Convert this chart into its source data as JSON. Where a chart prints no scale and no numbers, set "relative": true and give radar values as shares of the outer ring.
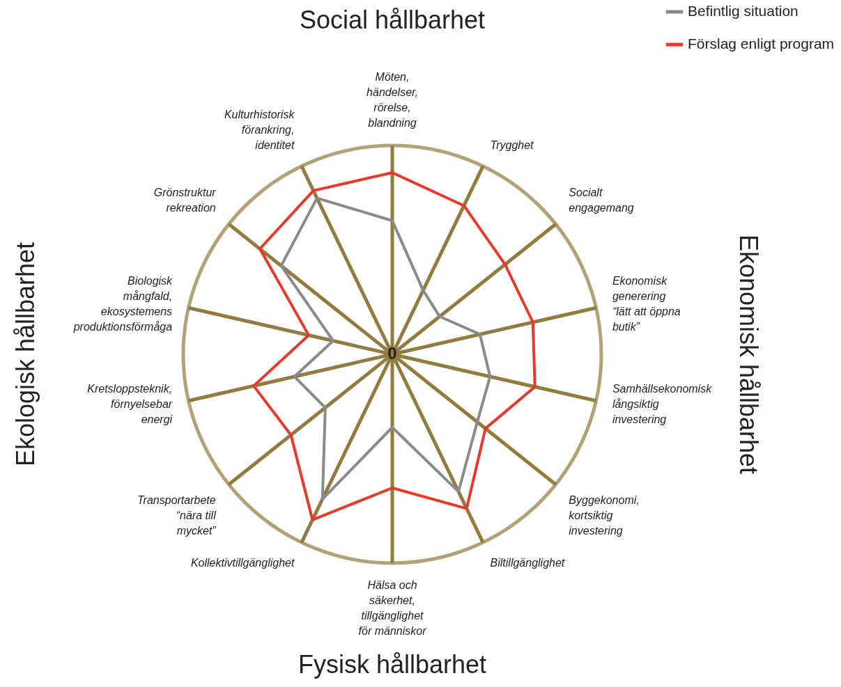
{
  "chart_data": {
    "type": "radar",
    "relative": true,
    "grid": true,
    "legend": "top right",
    "categories": [
      "Möten, händelser, rörelse, blandning",
      "Trygghet",
      "Socialt engagemang",
      "Ekonomisk generering “lätt att öppna butik”",
      "Samhällsekonomisk långsiktig investering",
      "Byggekonomi, kortsiktig investering",
      "Biltillgänglighet",
      "Hälsa och säkerhet, tillgänglighet för människor",
      "Kollektivtillgänglighet",
      "Transportarbete “nära till mycket”",
      "Kretsloppsteknik, förnyelsebar energi",
      "Biologisk mångfald, ekosystemens produktionsförmåga",
      "Grönstruktur rekreation",
      "Kulturhistorisk förankring, identitet"
    ],
    "series": [
      {
        "name": "Befintlig situation",
        "color": "#8a8a8e",
        "values": [
          0.64,
          0.34,
          0.29,
          0.43,
          0.48,
          0.52,
          0.73,
          0.35,
          0.77,
          0.41,
          0.48,
          0.29,
          0.68,
          0.83
        ]
      },
      {
        "name": "Förslag enligt program",
        "color": "#e8392a",
        "values": [
          0.87,
          0.79,
          0.69,
          0.69,
          0.7,
          0.57,
          0.82,
          0.64,
          0.88,
          0.62,
          0.68,
          0.41,
          0.81,
          0.87
        ]
      }
    ],
    "annotations": [
      "Social hållbarhet",
      "Ekonomisk hållbarhet",
      "Fysisk hållbarhet",
      "Ekologisk hållbarhet",
      "0"
    ]
  }
}
